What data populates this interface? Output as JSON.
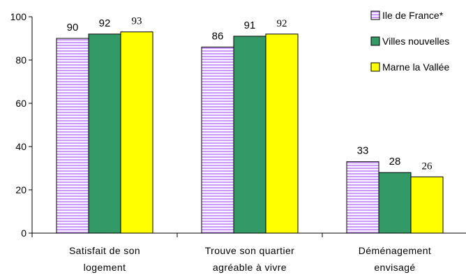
{
  "chart_data": {
    "type": "bar",
    "categories": [
      [
        "Satisfait de son",
        "logement"
      ],
      [
        "Trouve son quartier",
        "agréable à vivre"
      ],
      [
        "Déménagement",
        "envisagé"
      ]
    ],
    "series": [
      {
        "name": "Ile de France*",
        "values": [
          90,
          86,
          33
        ],
        "color": "#cc99ff",
        "pattern": "horizontal-stripes"
      },
      {
        "name": "Villes nouvelles",
        "values": [
          92,
          91,
          28
        ],
        "color": "#339966",
        "pattern": "solid"
      },
      {
        "name": "Marne la Vallée",
        "values": [
          93,
          92,
          26
        ],
        "color": "#ffff00",
        "pattern": "solid"
      }
    ],
    "ylim": [
      0,
      100
    ],
    "yticks": [
      0,
      20,
      40,
      60,
      80,
      100
    ],
    "title": "",
    "xlabel": "",
    "ylabel": "",
    "legend_position": "top-right",
    "grid": false
  }
}
